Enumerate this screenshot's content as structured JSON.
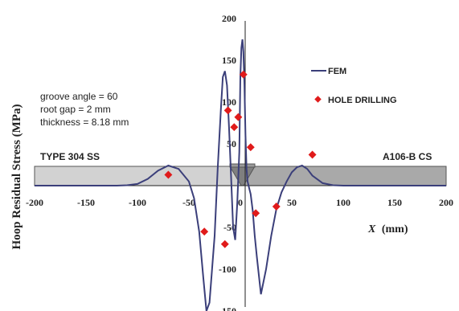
{
  "chart_data": {
    "type": "line",
    "title": "",
    "xlabel": "X (mm)",
    "xlabel_var": "X",
    "xlabel_unit": "(mm)",
    "ylabel": "Hoop Residual Stress (MPa)",
    "xlim": [
      -200,
      200
    ],
    "ylim": [
      -150,
      200
    ],
    "x_ticks": [
      "-200",
      "-150",
      "-100",
      "-50",
      "0",
      "50",
      "100",
      "150",
      "200"
    ],
    "y_ticks": [
      "200",
      "150",
      "100",
      "50",
      "-50",
      "-100",
      "-150"
    ],
    "grid": false,
    "legend_position": "top-right",
    "colors": {
      "fem": "#3b3f7a",
      "hole_drilling": "#e01b1b",
      "plate": "#cfcfcf",
      "plate_dark": "#a8a8a8",
      "weld": "#8e8e8e"
    },
    "series": [
      {
        "name": "FEM",
        "kind": "line",
        "x": [
          -200,
          -160,
          -120,
          -110,
          -100,
          -90,
          -80,
          -70,
          -60,
          -50,
          -45,
          -40,
          -36,
          -33,
          -30,
          -25,
          -22,
          -19,
          -17,
          -15,
          -13,
          -11,
          -9,
          -7,
          -5,
          -3,
          -1,
          0,
          1,
          2,
          3,
          4,
          5,
          6,
          7,
          8,
          9,
          10,
          11,
          12,
          14,
          16,
          20,
          25,
          30,
          35,
          40,
          45,
          50,
          55,
          60,
          65,
          70,
          80,
          90,
          100,
          110,
          120,
          160,
          200
        ],
        "y": [
          0,
          0,
          0,
          0.5,
          2,
          8,
          18,
          24,
          20,
          5,
          -15,
          -55,
          -110,
          -150,
          -140,
          -60,
          20,
          90,
          130,
          137,
          120,
          70,
          10,
          -50,
          -65,
          -20,
          40,
          130,
          165,
          175,
          160,
          120,
          60,
          20,
          5,
          0,
          -5,
          -10,
          -20,
          -30,
          -60,
          -85,
          -130,
          -100,
          -60,
          -28,
          -8,
          5,
          16,
          22,
          24,
          20,
          12,
          3,
          0.5,
          0,
          0,
          0,
          0,
          0
        ]
      },
      {
        "name": "HOLE DRILLING",
        "kind": "scatter",
        "x": [
          -70,
          -35,
          -15,
          -12,
          -6,
          -2,
          3,
          10,
          15,
          35,
          70
        ],
        "y": [
          13,
          -55,
          -70,
          90,
          70,
          82,
          133,
          46,
          -33,
          -25,
          37
        ]
      }
    ],
    "annotations": {
      "groove_angle": "groove angle = 60",
      "root_gap": "root gap = 2 mm",
      "thickness": "thickness = 8.18 mm",
      "left_material": "TYPE 304 SS",
      "right_material": "A106-B CS"
    }
  }
}
